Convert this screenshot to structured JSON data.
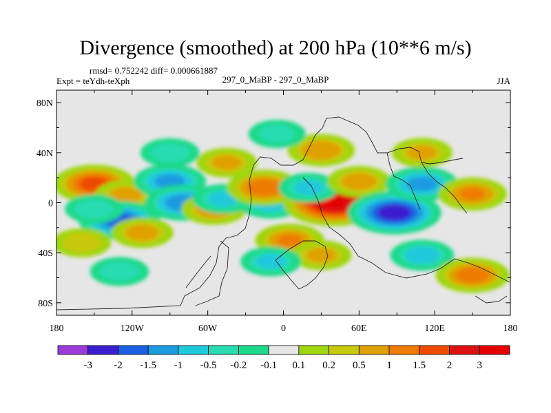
{
  "title": "Divergence (smoothed) at 200 hPa (10**6 m/s)",
  "stats": "rmsd= 0.752242 diff= 0.000661887",
  "experiment": "Expt = teYdh-teXph",
  "cases": "297_0_MaBP - 297_0_MaBP",
  "season": "JJA",
  "lat_ticks": [
    "80N",
    "40N",
    "0",
    "40S",
    "80S"
  ],
  "lon_ticks": [
    "180",
    "120W",
    "60W",
    "0",
    "60E",
    "120E",
    "180"
  ],
  "colorbar": {
    "labels": [
      "-3",
      "-2",
      "-1.5",
      "-1",
      "-0.5",
      "-0.2",
      "-0.1",
      "0.1",
      "0.2",
      "0.5",
      "1",
      "1.5",
      "2",
      "3"
    ],
    "colors": [
      "#9b3bd9",
      "#3b1fcf",
      "#1c5fe0",
      "#1d9be0",
      "#20c8dc",
      "#26dcb0",
      "#1dd98a",
      "#e6e6e6",
      "#9fd60f",
      "#c8c80d",
      "#e0a000",
      "#ee7a00",
      "#ee4a00",
      "#dd1111",
      "#e60000"
    ]
  },
  "chart_data": {
    "type": "heatmap",
    "title": "Divergence (smoothed) at 200 hPa (10**6 m/s)",
    "xlim": [
      -180,
      180
    ],
    "ylim": [
      -90,
      90
    ],
    "levels": [
      -3,
      -2,
      -1.5,
      -1,
      -0.5,
      -0.2,
      -0.1,
      0.1,
      0.2,
      0.5,
      1,
      1.5,
      2,
      3
    ],
    "features": [
      {
        "lon": -150,
        "lat": 15,
        "value": 1.8,
        "desc": "positive band"
      },
      {
        "lon": -125,
        "lat": 6,
        "value": 0.6,
        "desc": "positive band"
      },
      {
        "lon": -90,
        "lat": 17,
        "value": -1.2,
        "desc": "negative"
      },
      {
        "lon": -80,
        "lat": 0,
        "value": -1.4,
        "desc": "negative"
      },
      {
        "lon": -130,
        "lat": -14,
        "value": -1.8,
        "desc": "negative"
      },
      {
        "lon": -150,
        "lat": -5,
        "value": -0.4,
        "desc": "negative"
      },
      {
        "lon": -112,
        "lat": -24,
        "value": 0.6,
        "desc": "positive"
      },
      {
        "lon": -160,
        "lat": -32,
        "value": 0.4,
        "desc": "positive"
      },
      {
        "lon": -55,
        "lat": -5,
        "value": 0.8,
        "desc": "positive"
      },
      {
        "lon": -48,
        "lat": 3,
        "value": -0.5,
        "desc": "negative"
      },
      {
        "lon": -10,
        "lat": 0,
        "value": -0.8,
        "desc": "negative"
      },
      {
        "lon": -15,
        "lat": 12,
        "value": 1.4,
        "desc": "positive"
      },
      {
        "lon": -45,
        "lat": 32,
        "value": 0.5,
        "desc": "positive"
      },
      {
        "lon": -90,
        "lat": 40,
        "value": -0.4,
        "desc": "negative"
      },
      {
        "lon": 40,
        "lat": 0,
        "value": 3.0,
        "desc": "strong positive"
      },
      {
        "lon": 20,
        "lat": 12,
        "value": -0.5,
        "desc": "negative"
      },
      {
        "lon": 60,
        "lat": 17,
        "value": 0.7,
        "desc": "positive"
      },
      {
        "lon": 88,
        "lat": -8,
        "value": -2.5,
        "desc": "strong negative"
      },
      {
        "lon": 110,
        "lat": 15,
        "value": -1.2,
        "desc": "negative"
      },
      {
        "lon": 150,
        "lat": 7,
        "value": 1.0,
        "desc": "positive"
      },
      {
        "lon": 110,
        "lat": 40,
        "value": 0.5,
        "desc": "positive"
      },
      {
        "lon": 30,
        "lat": 42,
        "value": 0.9,
        "desc": "positive"
      },
      {
        "lon": -5,
        "lat": 55,
        "value": -0.3,
        "desc": "negative"
      },
      {
        "lon": 5,
        "lat": -30,
        "value": 1.0,
        "desc": "positive"
      },
      {
        "lon": 30,
        "lat": -42,
        "value": 0.5,
        "desc": "positive"
      },
      {
        "lon": -10,
        "lat": -47,
        "value": -0.5,
        "desc": "negative"
      },
      {
        "lon": 110,
        "lat": -42,
        "value": -0.7,
        "desc": "negative"
      },
      {
        "lon": 150,
        "lat": -58,
        "value": 1.3,
        "desc": "positive"
      },
      {
        "lon": -130,
        "lat": -55,
        "value": -0.4,
        "desc": "negative"
      }
    ]
  }
}
